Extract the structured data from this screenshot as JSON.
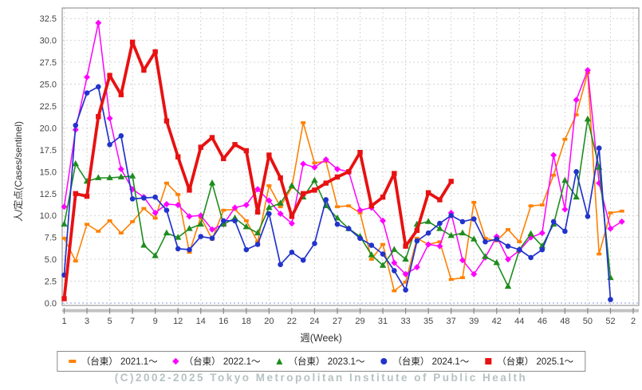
{
  "footer": {
    "copyright": "(C)2002-2025 Tokyo Metropolitan Institute of Public Health"
  },
  "chart_data": {
    "type": "line",
    "title": "",
    "xlabel": "週(Week)",
    "ylabel": "人/定点(Cases/sentinel)",
    "ylim": [
      0,
      32.5
    ],
    "ytick_step": 2.5,
    "grid": true,
    "legend_position": "bottom",
    "x_tick_labels": [
      "1",
      "3",
      "5",
      "7",
      "9",
      "12",
      "14",
      "16",
      "18",
      "20",
      "22",
      "24",
      "27",
      "29",
      "31",
      "33",
      "35",
      "37",
      "39",
      "42",
      "44",
      "46",
      "48",
      "50",
      "52",
      "2"
    ],
    "series": [
      {
        "name": "（台東） 2021.1～",
        "color": "#ff8000",
        "marker": "hbar",
        "linewidth": 1.6,
        "values": [
          7.4,
          4.8,
          9.0,
          8.2,
          9.4,
          8.0,
          9.3,
          10.8,
          9.7,
          13.7,
          12.4,
          5.8,
          9.8,
          7.3,
          10.6,
          10.7,
          9.4,
          7.0,
          13.4,
          11.0,
          13.2,
          20.6,
          16.0,
          16.2,
          11.0,
          11.1,
          10.3,
          5.0,
          6.7,
          1.4,
          2.4,
          7.4,
          6.7,
          7.0,
          2.7,
          2.9,
          11.5,
          7.4,
          7.1,
          8.4,
          7.0,
          11.1,
          11.2,
          14.6,
          18.7,
          21.5,
          26.3,
          5.6,
          10.3,
          10.5
        ]
      },
      {
        "name": "（台東） 2022.1～",
        "color": "#ff00ff",
        "marker": "diamond",
        "linewidth": 1.5,
        "values": [
          11.0,
          19.8,
          25.8,
          32.0,
          21.1,
          15.3,
          13.0,
          12.1,
          10.3,
          11.3,
          11.2,
          9.9,
          10.0,
          8.4,
          9.0,
          10.9,
          11.2,
          13.0,
          11.7,
          10.2,
          9.1,
          15.9,
          15.5,
          16.4,
          15.3,
          15.0,
          10.6,
          10.9,
          9.4,
          4.6,
          3.3,
          4.1,
          6.7,
          6.5,
          10.3,
          4.9,
          3.3,
          5.2,
          7.6,
          5.0,
          6.0,
          7.5,
          8.0,
          16.9,
          10.7,
          23.2,
          26.6,
          13.7,
          8.5,
          9.3
        ]
      },
      {
        "name": "（台東） 2023.1～",
        "color": "#1e8c1e",
        "marker": "triangle",
        "linewidth": 1.6,
        "values": [
          9.0,
          15.9,
          13.9,
          14.3,
          14.3,
          14.4,
          14.5,
          6.6,
          5.4,
          8.0,
          7.5,
          8.5,
          9.0,
          13.7,
          9.0,
          9.7,
          8.7,
          8.0,
          10.9,
          11.4,
          13.4,
          12.1,
          14.0,
          11.1,
          9.7,
          8.5,
          7.6,
          5.5,
          4.3,
          6.1,
          5.0,
          9.0,
          9.3,
          8.5,
          7.7,
          8.0,
          7.3,
          5.3,
          4.6,
          1.9,
          6.1,
          7.9,
          6.5,
          9.0,
          14.0,
          12.1,
          21.0,
          15.5,
          2.9
        ]
      },
      {
        "name": "（台東） 2024.1～",
        "color": "#2233cc",
        "marker": "circle",
        "linewidth": 1.7,
        "values": [
          3.2,
          20.3,
          24.0,
          24.7,
          18.1,
          19.1,
          11.9,
          12.0,
          12.1,
          10.6,
          6.2,
          6.1,
          7.6,
          7.4,
          9.4,
          9.4,
          6.1,
          6.7,
          10.2,
          4.4,
          5.8,
          4.9,
          6.8,
          11.8,
          9.0,
          8.5,
          7.4,
          6.6,
          5.6,
          3.7,
          1.5,
          7.1,
          8.0,
          9.1,
          10.0,
          9.3,
          9.6,
          7.0,
          7.3,
          6.5,
          6.1,
          5.2,
          6.1,
          9.3,
          8.2,
          15.0,
          9.9,
          17.7,
          0.4
        ]
      },
      {
        "name": "（台東） 2025.1～",
        "color": "#e81111",
        "marker": "square",
        "linewidth": 3.8,
        "values": [
          0.5,
          12.5,
          12.2,
          21.3,
          26.0,
          23.8,
          29.8,
          26.6,
          28.7,
          20.8,
          16.7,
          12.9,
          17.8,
          18.9,
          16.5,
          18.1,
          17.4,
          10.4,
          16.9,
          14.3,
          9.9,
          12.5,
          12.9,
          13.7,
          14.4,
          15.0,
          17.2,
          11.1,
          12.1,
          14.8,
          6.5,
          8.3,
          12.6,
          11.8,
          13.9
        ]
      }
    ]
  }
}
